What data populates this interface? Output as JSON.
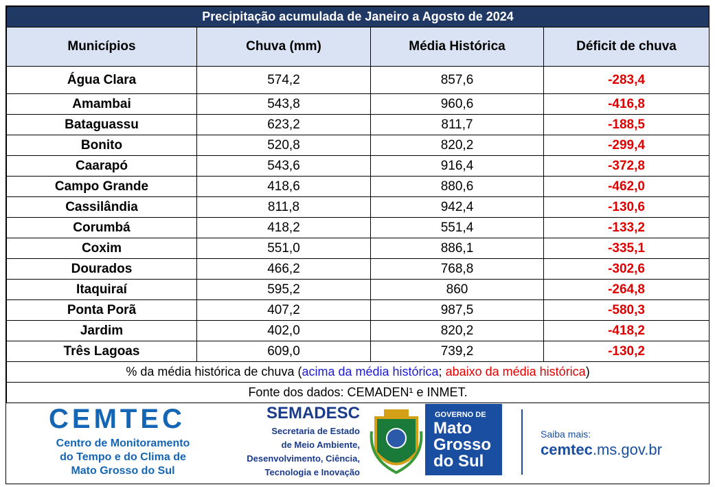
{
  "title": "Precipitação acumulada de Janeiro a Agosto de 2024",
  "table": {
    "columns": [
      "Municípios",
      "Chuva (mm)",
      "Média Histórica",
      "Déficit de chuva"
    ],
    "rows": [
      [
        "Água Clara",
        "574,2",
        "857,6",
        "-283,4"
      ],
      [
        "Amambai",
        "543,8",
        "960,6",
        "-416,8"
      ],
      [
        "Bataguassu",
        "623,2",
        "811,7",
        "-188,5"
      ],
      [
        "Bonito",
        "520,8",
        "820,2",
        "-299,4"
      ],
      [
        "Caarapó",
        "543,6",
        "916,4",
        "-372,8"
      ],
      [
        "Campo Grande",
        "418,6",
        "880,6",
        "-462,0"
      ],
      [
        "Cassilândia",
        "811,8",
        "942,4",
        "-130,6"
      ],
      [
        "Corumbá",
        "418,2",
        "551,4",
        "-133,2"
      ],
      [
        "Coxim",
        "551,0",
        "886,1",
        "-335,1"
      ],
      [
        "Dourados",
        "466,2",
        "768,8",
        "-302,6"
      ],
      [
        "Itaquiraí",
        "595,2",
        "860",
        "-264,8"
      ],
      [
        "Ponta Porã",
        "407,2",
        "987,5",
        "-580,3"
      ],
      [
        "Jardim",
        "402,0",
        "820,2",
        "-418,2"
      ],
      [
        "Três Lagoas",
        "609,0",
        "739,2",
        "-130,2"
      ]
    ]
  },
  "note": {
    "prefix": "% da média histórica de chuva (",
    "above": "acima da média histórica",
    "separator": ";",
    "below": "abaixo da média histórica",
    "suffix": ")"
  },
  "source": "Fonte dos dados: CEMADEN¹ e INMET.",
  "footer": {
    "cemtec": {
      "name": "CEMTEC",
      "lines": [
        "Centro de Monitoramento",
        "do Tempo e do Clima de",
        "Mato Grosso do Sul"
      ]
    },
    "semadesc": {
      "name": "SEMADESC",
      "lines": [
        "Secretaria de Estado",
        "de Meio Ambiente,",
        "Desenvolvimento, Ciência,",
        "Tecnologia e Inovação"
      ]
    },
    "governo": {
      "top": "GOVERNO DE",
      "lines": [
        "Mato",
        "Grosso",
        "do Sul"
      ]
    },
    "link": {
      "label": "Saiba mais:",
      "bold": "cemtec",
      "rest": ".ms.gov.br"
    }
  }
}
